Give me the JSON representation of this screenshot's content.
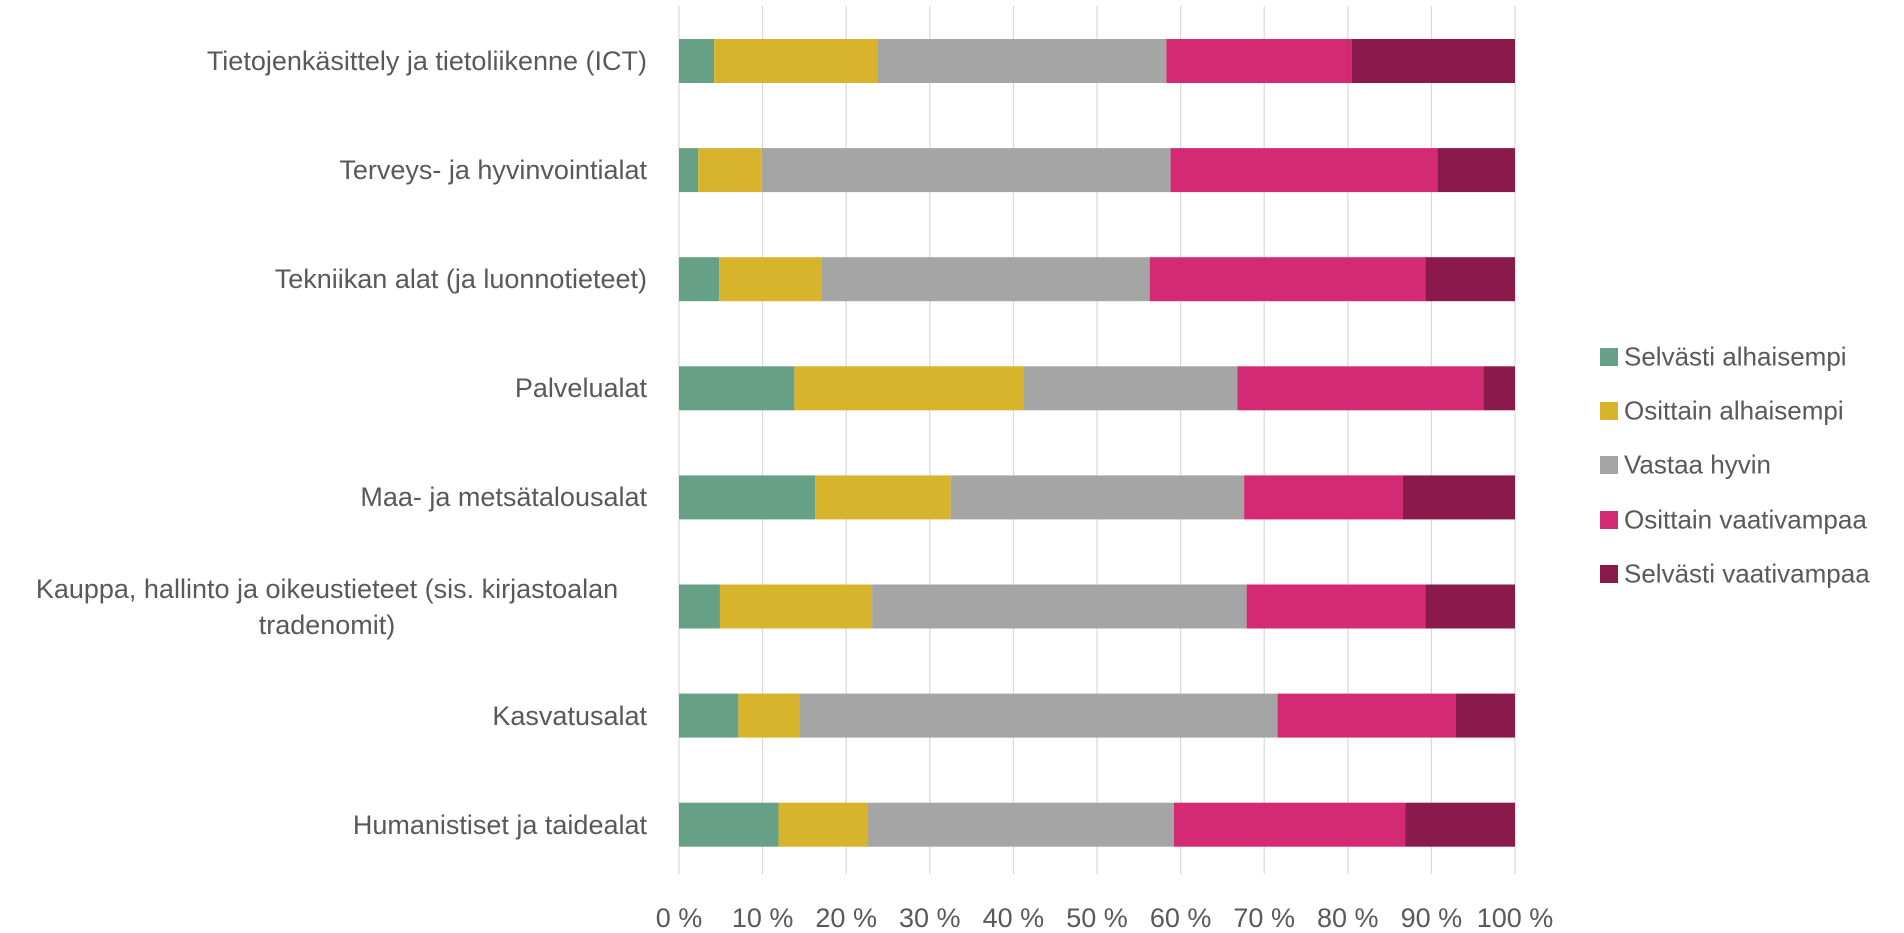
{
  "chart_data": {
    "type": "stacked-bar-horizontal",
    "categories": [
      "Tietojenkäsittely ja tietoliikenne (ICT)",
      "Terveys- ja hyvinvointialat",
      "Tekniikan alat (ja luonnotieteet)",
      "Palvelualat",
      "Maa- ja metsätalousalat",
      "Kauppa, hallinto ja oikeustieteet (sis. kirjastoalan tradenomit)",
      "Kasvatusalat",
      "Humanistiset ja taidealat"
    ],
    "series": [
      {
        "name": "Selvästi alhaisempi",
        "color": "#66a187",
        "values": [
          4.2,
          2.3,
          4.8,
          13.8,
          16.3,
          4.9,
          7.1,
          11.9
        ]
      },
      {
        "name": "Osittain alhaisempi",
        "color": "#d8b42c",
        "values": [
          19.5,
          7.6,
          12.3,
          27.4,
          16.2,
          18.2,
          7.3,
          10.6
        ]
      },
      {
        "name": "Vastaa hyvin",
        "color": "#a5a5a5",
        "values": [
          34.6,
          48.9,
          39.2,
          25.6,
          35.1,
          44.8,
          57.2,
          36.7
        ]
      },
      {
        "name": "Osittain vaativampaa",
        "color": "#d42a74",
        "values": [
          22.2,
          31.9,
          33.0,
          29.4,
          19.0,
          21.4,
          21.3,
          27.7
        ]
      },
      {
        "name": "Selvästi vaativampaa",
        "color": "#8b1a4c",
        "values": [
          19.5,
          9.3,
          10.7,
          3.8,
          13.4,
          10.7,
          7.1,
          13.1
        ]
      }
    ],
    "xlim": [
      0,
      100
    ],
    "xticks": [
      {
        "value": 0,
        "label": "0 %"
      },
      {
        "value": 10,
        "label": "10 %"
      },
      {
        "value": 20,
        "label": "20 %"
      },
      {
        "value": 30,
        "label": "30 %"
      },
      {
        "value": 40,
        "label": "40 %"
      },
      {
        "value": 50,
        "label": "50 %"
      },
      {
        "value": 60,
        "label": "60 %"
      },
      {
        "value": 70,
        "label": "70 %"
      },
      {
        "value": 80,
        "label": "80 %"
      },
      {
        "value": 90,
        "label": "90 %"
      },
      {
        "value": 100,
        "label": "100 %"
      }
    ],
    "grid": true,
    "legend": "right"
  }
}
